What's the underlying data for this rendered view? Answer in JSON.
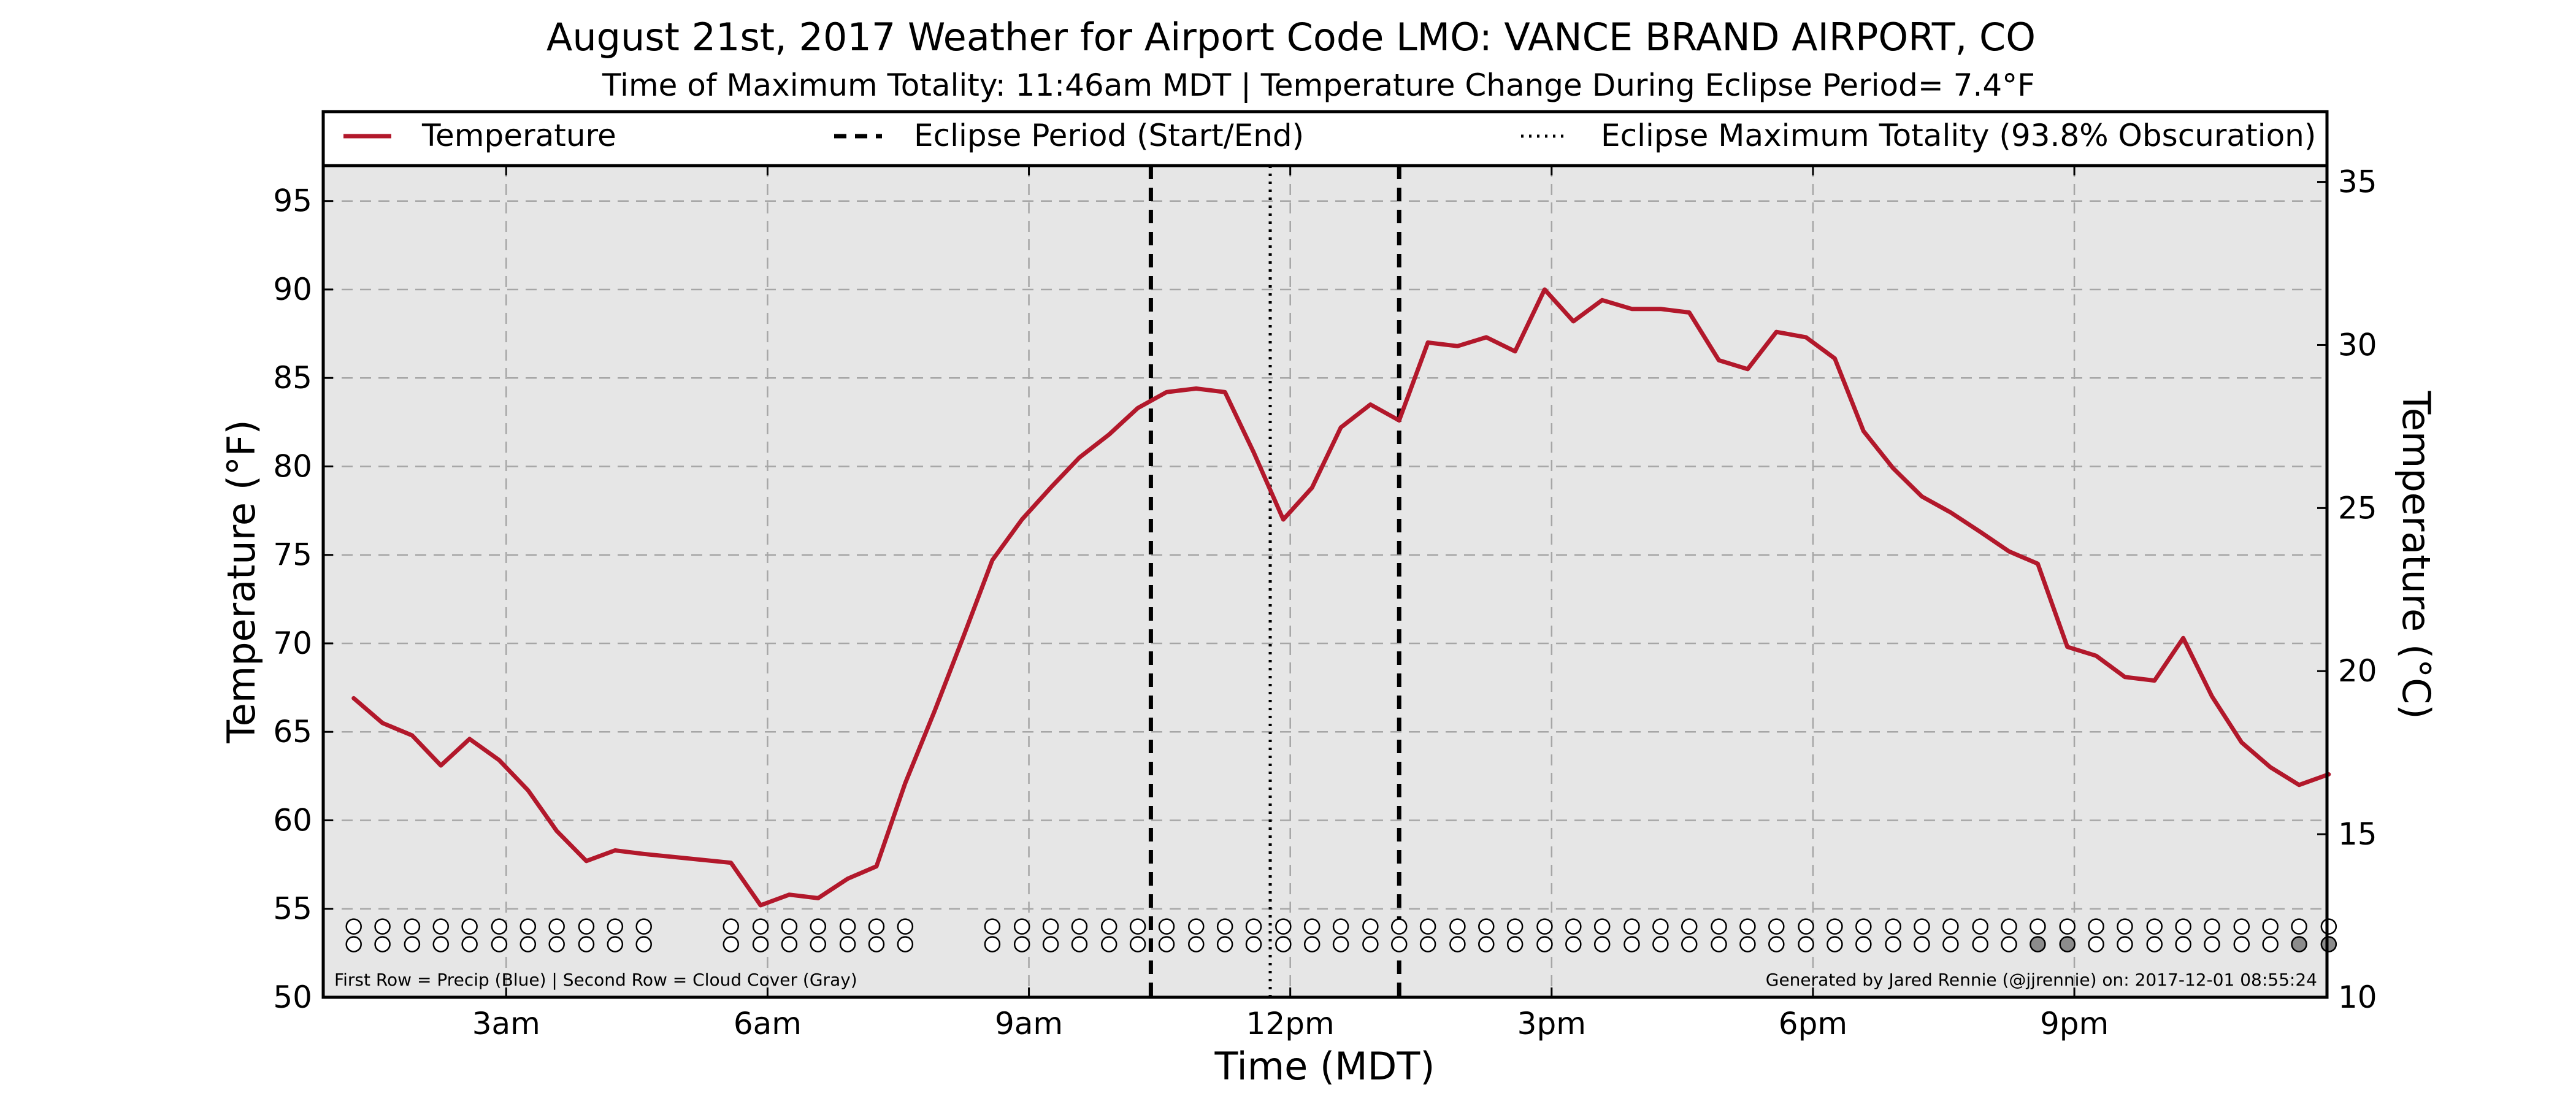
{
  "chart_data": {
    "type": "line",
    "title": "August 21st, 2017 Weather for Airport Code LMO: VANCE BRAND AIRPORT, CO",
    "subtitle": "Time of Maximum Totality: 11:46am MDT | Temperature Change During Eclipse Period= 7.4°F",
    "xlabel": "Time (MDT)",
    "ylabel": "Temperature (°F)",
    "ylabel_right": "Temperature (°C)",
    "xlim": [
      0.9,
      23.9
    ],
    "ylim": [
      50,
      97
    ],
    "ylim_right": [
      10,
      35.5
    ],
    "x_ticks": [
      {
        "value": 3,
        "label": "3am"
      },
      {
        "value": 6,
        "label": "6am"
      },
      {
        "value": 9,
        "label": "9am"
      },
      {
        "value": 12,
        "label": "12pm"
      },
      {
        "value": 15,
        "label": "3pm"
      },
      {
        "value": 18,
        "label": "6pm"
      },
      {
        "value": 21,
        "label": "9pm"
      }
    ],
    "y_ticks": [
      50,
      55,
      60,
      65,
      70,
      75,
      80,
      85,
      90,
      95
    ],
    "y_ticks_right": [
      10,
      15,
      20,
      25,
      30,
      35
    ],
    "grid": true,
    "legend_position": "top",
    "legend": [
      {
        "label": "Temperature",
        "style": "solid",
        "color": "#b2182b"
      },
      {
        "label": "Eclipse Period (Start/End)",
        "style": "dashed",
        "color": "#000000"
      },
      {
        "label": "Eclipse Maximum Totality (93.8% Obscuration)",
        "style": "dotted",
        "color": "#000000"
      }
    ],
    "series": [
      {
        "name": "Temperature",
        "color": "#b2182b",
        "x": [
          1.25,
          1.58,
          1.92,
          2.25,
          2.58,
          2.92,
          3.25,
          3.58,
          3.92,
          4.25,
          4.58,
          5.58,
          5.92,
          6.25,
          6.58,
          6.92,
          7.25,
          7.58,
          7.92,
          8.25,
          8.58,
          8.92,
          9.25,
          9.58,
          9.92,
          10.25,
          10.58,
          10.92,
          11.25,
          11.58,
          11.92,
          12.25,
          12.58,
          12.92,
          13.25,
          13.58,
          13.92,
          14.25,
          14.58,
          14.92,
          15.25,
          15.58,
          15.92,
          16.25,
          16.58,
          16.92,
          17.25,
          17.58,
          17.92,
          18.25,
          18.58,
          18.92,
          19.25,
          19.58,
          19.92,
          20.25,
          20.58,
          20.92,
          21.25,
          21.58,
          21.92,
          22.25,
          22.58,
          22.92,
          23.25,
          23.58,
          23.92
        ],
        "y": [
          66.9,
          65.5,
          64.8,
          63.1,
          64.6,
          63.4,
          61.7,
          59.4,
          57.7,
          58.3,
          58.1,
          57.6,
          55.2,
          55.8,
          55.6,
          56.7,
          57.4,
          62.1,
          66.2,
          70.4,
          74.7,
          77.0,
          78.8,
          80.5,
          81.8,
          83.3,
          84.2,
          84.4,
          84.2,
          80.8,
          77.0,
          78.8,
          82.2,
          83.5,
          82.6,
          87.0,
          86.8,
          87.3,
          86.5,
          90.0,
          88.2,
          89.4,
          88.9,
          88.9,
          88.7,
          86.0,
          85.5,
          87.6,
          87.3,
          86.1,
          82.0,
          79.9,
          78.3,
          77.4,
          76.3,
          75.2,
          74.5,
          69.8,
          69.3,
          68.1,
          67.9,
          70.3,
          67.0,
          64.4,
          63.0,
          62.0,
          62.6
        ]
      }
    ],
    "eclipse_start": 10.4,
    "eclipse_end": 13.25,
    "eclipse_max": 11.77,
    "station_markers": {
      "x": [
        1.25,
        1.58,
        1.92,
        2.25,
        2.58,
        2.92,
        3.25,
        3.58,
        3.92,
        4.25,
        4.58,
        5.58,
        5.92,
        6.25,
        6.58,
        6.92,
        7.25,
        7.58,
        8.58,
        8.92,
        9.25,
        9.58,
        9.92,
        10.25,
        10.58,
        10.92,
        11.25,
        11.58,
        11.92,
        12.25,
        12.58,
        12.92,
        13.25,
        13.58,
        13.92,
        14.25,
        14.58,
        14.92,
        15.25,
        15.58,
        15.92,
        16.25,
        16.58,
        16.92,
        17.25,
        17.58,
        17.92,
        18.25,
        18.58,
        18.92,
        19.25,
        19.58,
        19.92,
        20.25,
        20.58,
        20.92,
        21.25,
        21.58,
        21.92,
        22.25,
        22.58,
        22.92,
        23.25,
        23.58,
        23.92
      ],
      "precip_y": 54.0,
      "cloud_y": 53.0,
      "cloud_filled_x": [
        20.58,
        20.92,
        23.58,
        23.92
      ]
    },
    "footnote_left": "First Row = Precip (Blue) | Second Row = Cloud Cover (Gray)",
    "footnote_right": "Generated by Jared Rennie (@jjrennie) on: 2017-12-01 08:55:24"
  }
}
